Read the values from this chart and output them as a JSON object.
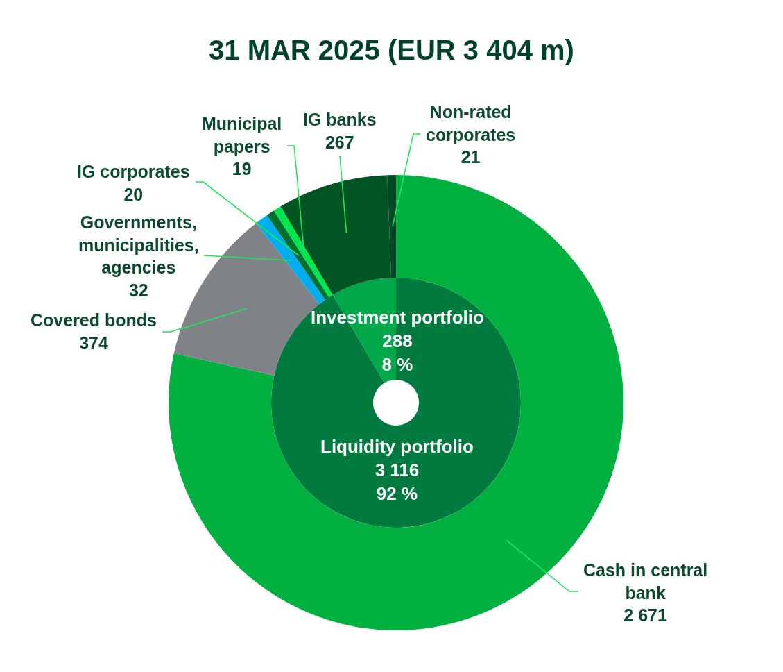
{
  "chart_data": [
    {
      "type": "donut",
      "title": "31 MAR 2025 (EUR 3 404 m)",
      "categories": [
        "Liquidity portfolio",
        "Investment portfolio"
      ],
      "values": [
        3116,
        288
      ],
      "colors": [
        "#007a3f",
        "#00a84a"
      ],
      "value_labels": [
        "3 116\n92 %",
        "288\n8 %"
      ]
    },
    {
      "type": "donut",
      "categories": [
        "Cash in central bank",
        "Covered bonds",
        "Governments, municipalities, agencies",
        "IG corporates",
        "Municipal papers",
        "IG banks",
        "Non-rated corporates"
      ],
      "values": [
        2671,
        374,
        32,
        20,
        19,
        267,
        21
      ],
      "colors": [
        "#00b140",
        "#7f8387",
        "#00aeef",
        "#00702f",
        "#00e64d",
        "#005522",
        "#004a2a"
      ],
      "value_labels": [
        "2 671",
        "374",
        "32",
        "20",
        "19",
        "267",
        "21"
      ]
    }
  ]
}
